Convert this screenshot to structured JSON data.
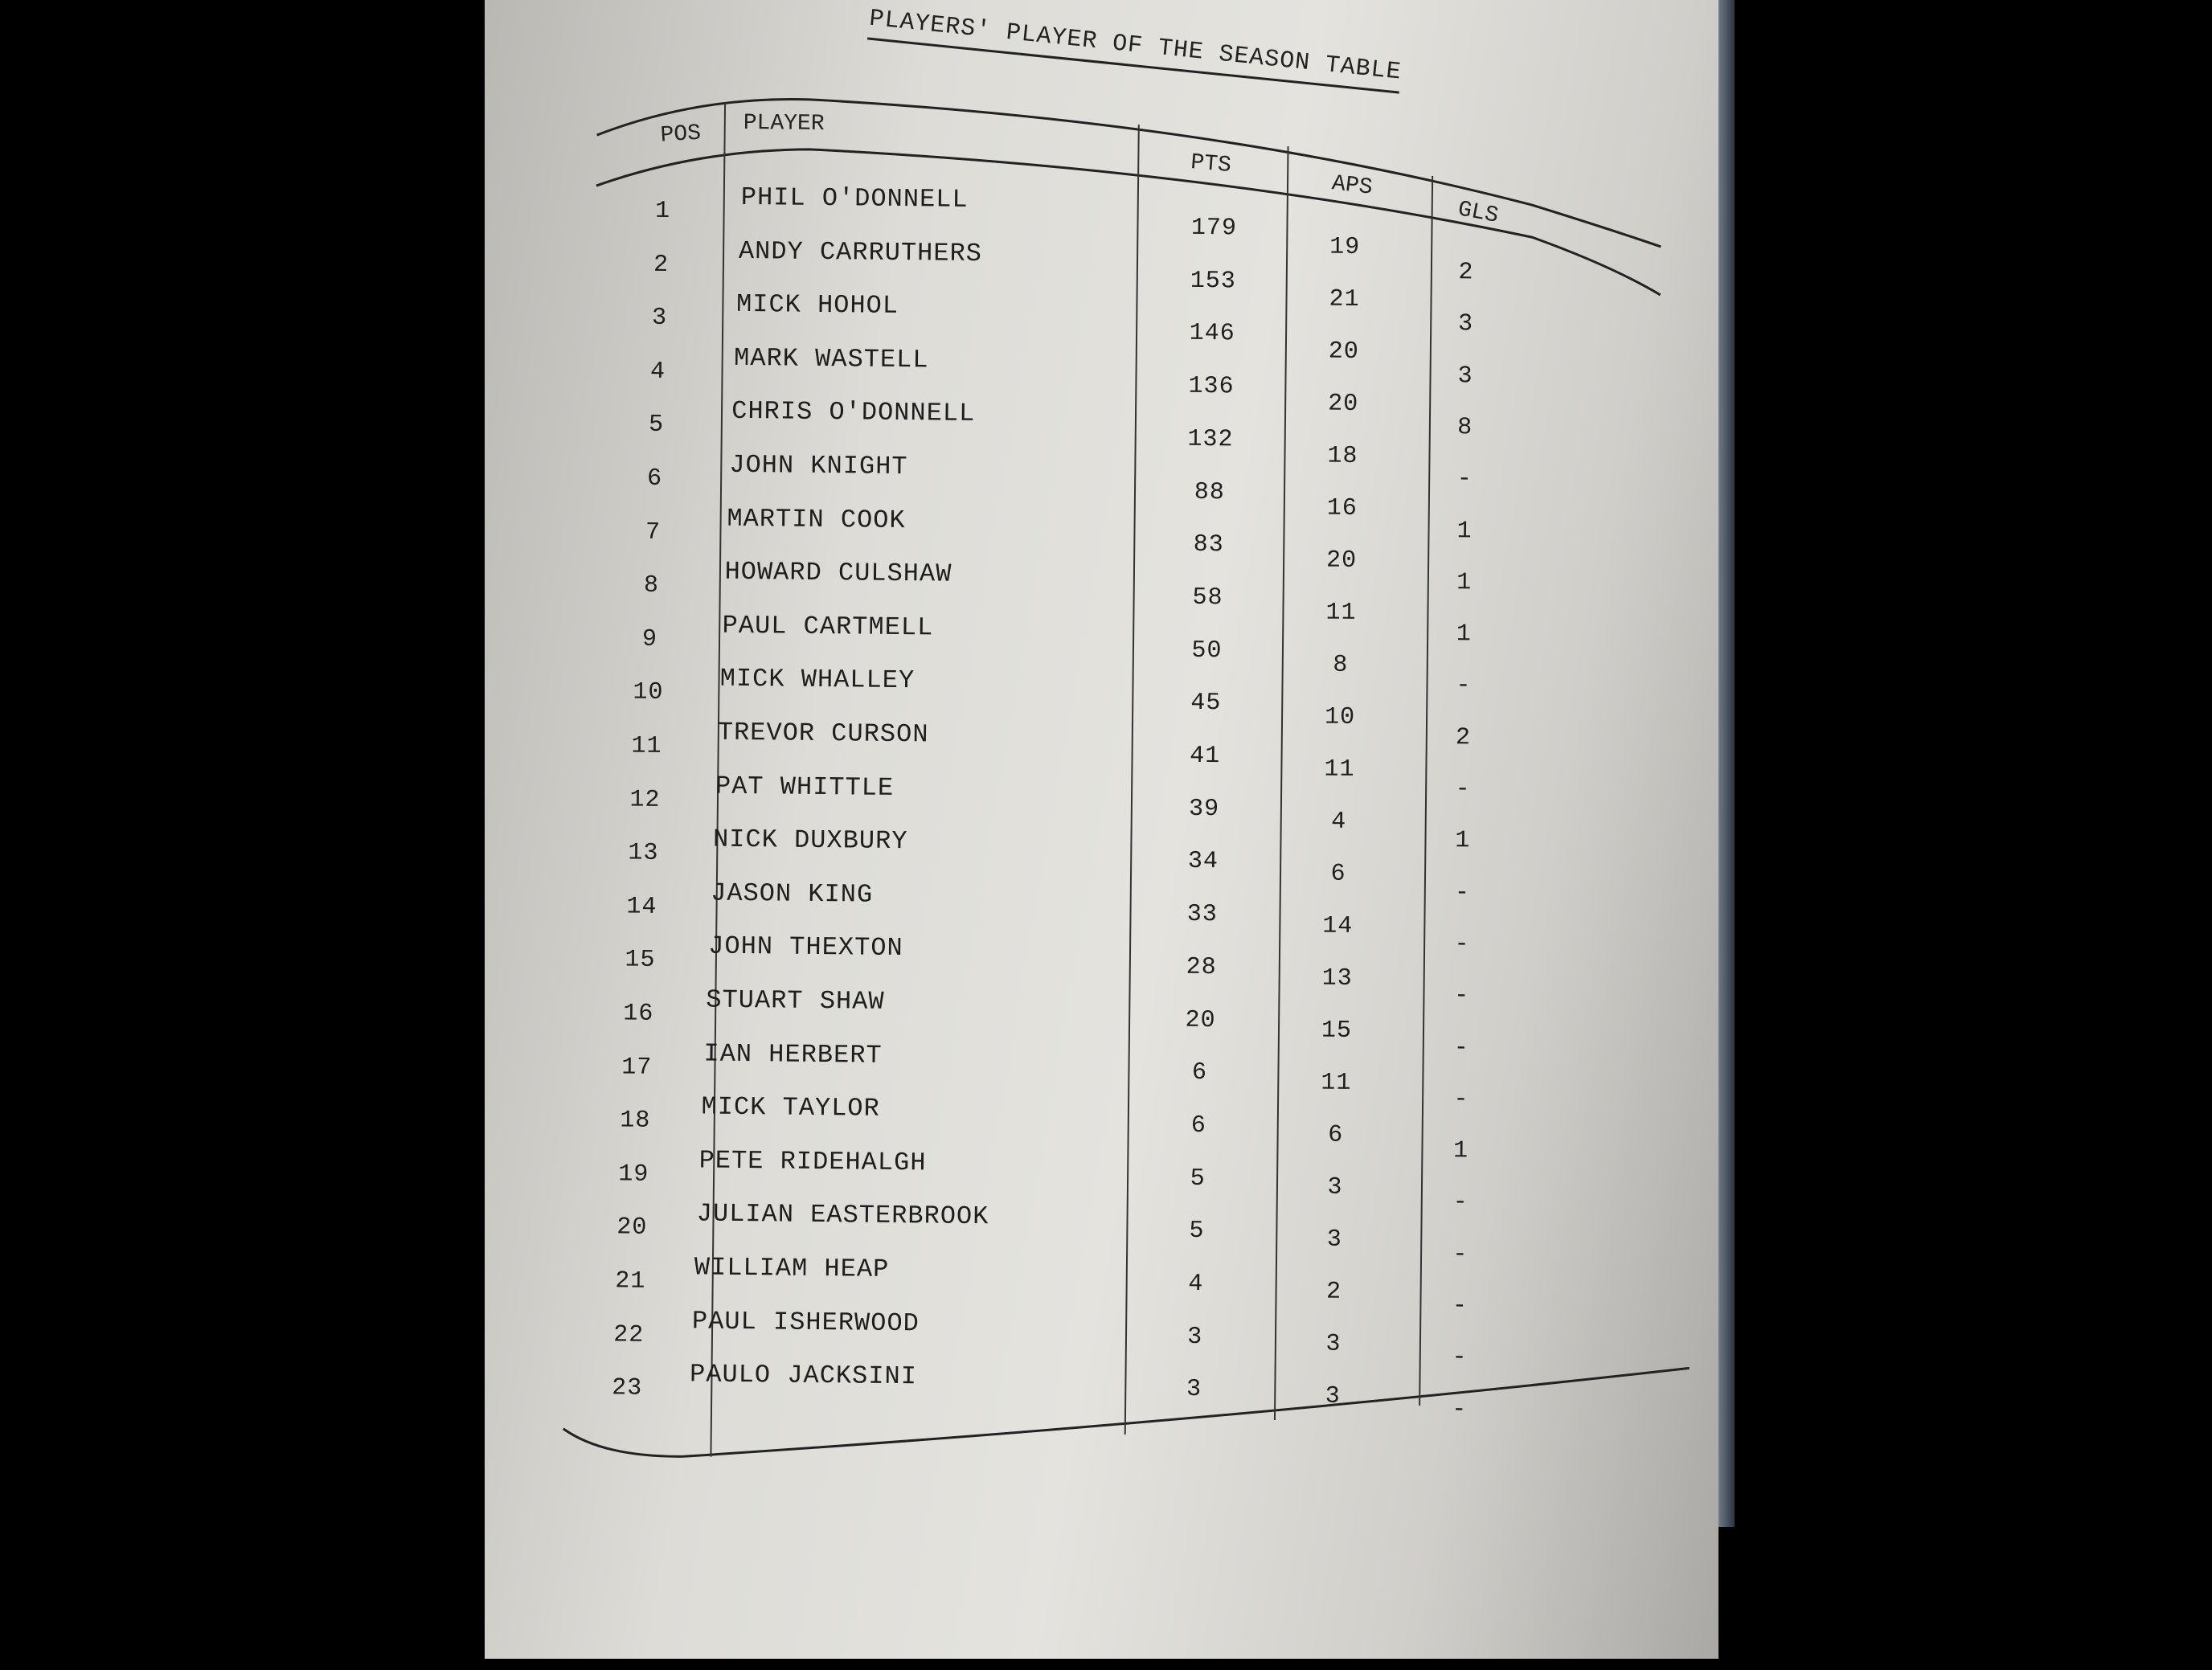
{
  "title": "PLAYERS' PLAYER OF THE SEASON TABLE",
  "columns": {
    "pos": "POS",
    "player": "PLAYER",
    "pts": "PTS",
    "aps": "APS",
    "gls": "GLS"
  },
  "rows": [
    {
      "pos": "1",
      "player": "PHIL O'DONNELL",
      "pts": "179",
      "aps": "19",
      "gls": "2"
    },
    {
      "pos": "2",
      "player": "ANDY CARRUTHERS",
      "pts": "153",
      "aps": "21",
      "gls": "3"
    },
    {
      "pos": "3",
      "player": "MICK HOHOL",
      "pts": "146",
      "aps": "20",
      "gls": "3"
    },
    {
      "pos": "4",
      "player": "MARK WASTELL",
      "pts": "136",
      "aps": "20",
      "gls": "8"
    },
    {
      "pos": "5",
      "player": "CHRIS O'DONNELL",
      "pts": "132",
      "aps": "18",
      "gls": "-"
    },
    {
      "pos": "6",
      "player": "JOHN KNIGHT",
      "pts": "88",
      "aps": "16",
      "gls": "1"
    },
    {
      "pos": "7",
      "player": "MARTIN COOK",
      "pts": "83",
      "aps": "20",
      "gls": "1"
    },
    {
      "pos": "8",
      "player": "HOWARD CULSHAW",
      "pts": "58",
      "aps": "11",
      "gls": "1"
    },
    {
      "pos": "9",
      "player": "PAUL CARTMELL",
      "pts": "50",
      "aps": "8",
      "gls": "-"
    },
    {
      "pos": "10",
      "player": "MICK WHALLEY",
      "pts": "45",
      "aps": "10",
      "gls": "2"
    },
    {
      "pos": "11",
      "player": "TREVOR CURSON",
      "pts": "41",
      "aps": "11",
      "gls": "-"
    },
    {
      "pos": "12",
      "player": "PAT WHITTLE",
      "pts": "39",
      "aps": "4",
      "gls": "1"
    },
    {
      "pos": "13",
      "player": "NICK DUXBURY",
      "pts": "34",
      "aps": "6",
      "gls": "-"
    },
    {
      "pos": "14",
      "player": "JASON KING",
      "pts": "33",
      "aps": "14",
      "gls": "-"
    },
    {
      "pos": "15",
      "player": "JOHN THEXTON",
      "pts": "28",
      "aps": "13",
      "gls": "-"
    },
    {
      "pos": "16",
      "player": "STUART SHAW",
      "pts": "20",
      "aps": "15",
      "gls": "-"
    },
    {
      "pos": "17",
      "player": "IAN HERBERT",
      "pts": "6",
      "aps": "11",
      "gls": "-"
    },
    {
      "pos": "18",
      "player": "MICK TAYLOR",
      "pts": "6",
      "aps": "6",
      "gls": "1"
    },
    {
      "pos": "19",
      "player": "PETE RIDEHALGH",
      "pts": "5",
      "aps": "3",
      "gls": "-"
    },
    {
      "pos": "20",
      "player": "JULIAN EASTERBROOK",
      "pts": "5",
      "aps": "3",
      "gls": "-"
    },
    {
      "pos": "21",
      "player": "WILLIAM HEAP",
      "pts": "4",
      "aps": "2",
      "gls": "-"
    },
    {
      "pos": "22",
      "player": "PAUL ISHERWOOD",
      "pts": "3",
      "aps": "3",
      "gls": "-"
    },
    {
      "pos": "23",
      "player": "PAULO JACKSINI",
      "pts": "3",
      "aps": "3",
      "gls": "-"
    }
  ]
}
